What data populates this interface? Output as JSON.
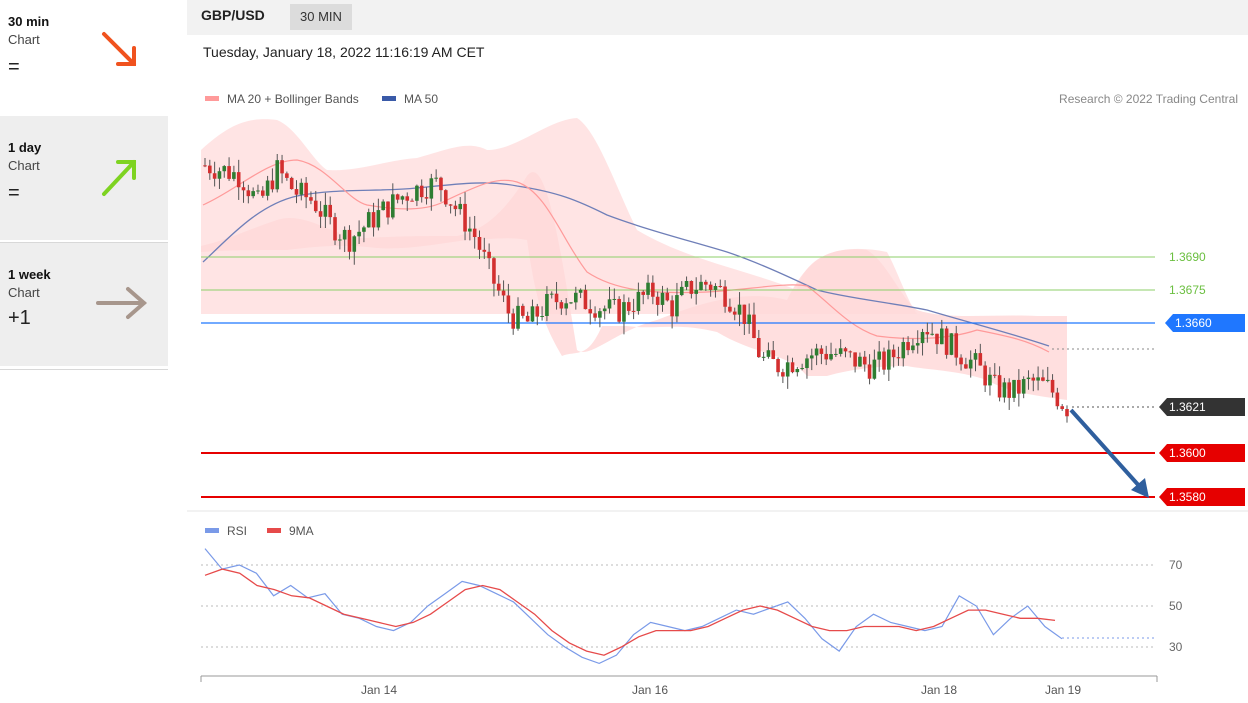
{
  "sidebar": {
    "items": [
      {
        "tf": "30 min",
        "type": "Chart",
        "status": "=",
        "arrow": "arrow-down-right-icon",
        "color": "#f0521e"
      },
      {
        "tf": "1 day",
        "type": "Chart",
        "status": "=",
        "arrow": "arrow-up-right-icon",
        "color": "#7ed321"
      },
      {
        "tf": "1 week",
        "type": "Chart",
        "status": "+1",
        "arrow": "arrow-right-icon",
        "color": "#a7968c"
      }
    ]
  },
  "header": {
    "symbol": "GBP/USD",
    "period": "30 MIN"
  },
  "datetime": "Tuesday, January 18, 2022 11:16:19 AM CET",
  "legend": {
    "ma_bb": "MA 20 + Bollinger Bands",
    "ma50": "MA 50",
    "credit": "Research © 2022 Trading Central"
  },
  "rsi_legend": {
    "rsi": "RSI",
    "ma": "9MA"
  },
  "levels": {
    "green": [
      "1.3690",
      "1.3675"
    ],
    "blue": "1.3660",
    "current": "1.3621",
    "red": [
      "1.3600",
      "1.3580"
    ]
  },
  "rsi_ticks": [
    "70",
    "50",
    "30"
  ],
  "x_ticks": [
    "Jan 14",
    "Jan 16",
    "Jan 18",
    "Jan 19"
  ],
  "colors": {
    "green": "#8ccf6a",
    "blue": "#1f77ff",
    "red": "#e60000",
    "current": "#333333",
    "band": "#ffd9d9",
    "ma20": "#ff9a9a",
    "ma50": "#6f7fb8",
    "rsi": "#7a9ae8",
    "rsi_ma": "#e64a4a",
    "arrow": "#2f5f9e"
  },
  "chart_data": {
    "type": "candlestick",
    "y_range": [
      1.3575,
      1.376
    ],
    "close_path": [
      1.3732,
      1.373,
      1.3727,
      1.3714,
      1.373,
      1.372,
      1.3716,
      1.3705,
      1.3698,
      1.3705,
      1.3712,
      1.3718,
      1.3722,
      1.3724,
      1.3712,
      1.37,
      1.368,
      1.3663,
      1.366,
      1.3668,
      1.3672,
      1.367,
      1.3667,
      1.3665,
      1.367,
      1.3674,
      1.3667,
      1.3676,
      1.3678,
      1.3673,
      1.3664,
      1.3643,
      1.364,
      1.3643,
      1.3646,
      1.3646,
      1.3643,
      1.364,
      1.3642,
      1.3651,
      1.3659,
      1.3653,
      1.3646,
      1.364,
      1.363,
      1.3628,
      1.3633,
      1.363,
      1.3621
    ],
    "rsi": [
      78,
      68,
      70,
      66,
      55,
      60,
      54,
      56,
      46,
      44,
      40,
      38,
      42,
      50,
      56,
      62,
      60,
      56,
      52,
      44,
      36,
      30,
      25,
      22,
      26,
      36,
      42,
      40,
      38,
      40,
      44,
      48,
      46,
      49,
      52,
      44,
      34,
      28,
      40,
      46,
      42,
      40,
      38,
      40,
      55,
      50,
      36,
      44,
      50,
      40,
      34
    ],
    "rsi_ma": [
      65,
      68,
      66,
      60,
      58,
      55,
      54,
      50,
      46,
      44,
      42,
      40,
      42,
      46,
      52,
      58,
      60,
      58,
      52,
      46,
      38,
      32,
      28,
      26,
      30,
      35,
      38,
      38,
      38,
      40,
      44,
      48,
      50,
      48,
      44,
      40,
      38,
      38,
      40,
      40,
      40,
      38,
      40,
      44,
      48,
      48,
      46,
      44,
      44,
      43
    ]
  }
}
